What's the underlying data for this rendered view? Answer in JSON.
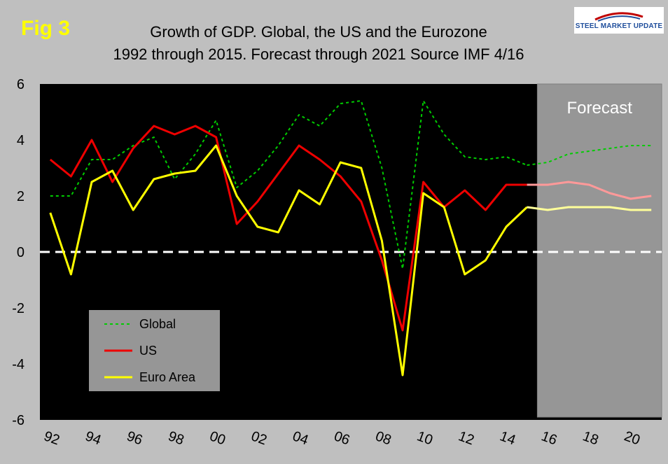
{
  "header": {
    "fig_label": "Fig 3",
    "title_line1": "Growth of GDP. Global, the US and the Eurozone",
    "title_line2": "1992 through 2015. Forecast through 2021 Source IMF 4/16",
    "logo_text": "STEEL MARKET UPDATE"
  },
  "chart_data": {
    "type": "line",
    "title": "Growth of GDP. Global, the US and the Eurozone 1992 through 2015. Forecast through 2021 Source IMF 4/16",
    "xlabel": "",
    "ylabel": "",
    "x": [
      1992,
      1993,
      1994,
      1995,
      1996,
      1997,
      1998,
      1999,
      2000,
      2001,
      2002,
      2003,
      2004,
      2005,
      2006,
      2007,
      2008,
      2009,
      2010,
      2011,
      2012,
      2013,
      2014,
      2015,
      2016,
      2017,
      2018,
      2019,
      2020,
      2021
    ],
    "xlim": [
      1991.5,
      2021.5
    ],
    "ylim": [
      -6,
      6
    ],
    "y_ticks": [
      -6,
      -4,
      -2,
      0,
      2,
      4,
      6
    ],
    "x_tick_values": [
      1992,
      1994,
      1996,
      1998,
      2000,
      2002,
      2004,
      2006,
      2008,
      2010,
      2012,
      2014,
      2016,
      2018,
      2020
    ],
    "x_tick_labels": [
      "92",
      "94",
      "96",
      "98",
      "00",
      "02",
      "04",
      "06",
      "08",
      "10",
      "12",
      "14",
      "16",
      "18",
      "20"
    ],
    "forecast_start": 2015.5,
    "forecast_label": "Forecast",
    "zero_line": true,
    "grid": false,
    "legend_position": "bottom-left",
    "series": [
      {
        "name": "Global",
        "color": "#00cc00",
        "style": "dotted",
        "values": [
          2.0,
          2.0,
          3.3,
          3.3,
          3.8,
          4.1,
          2.6,
          3.5,
          4.7,
          2.3,
          2.9,
          3.8,
          4.9,
          4.5,
          5.3,
          5.4,
          3.0,
          -0.6,
          5.4,
          4.2,
          3.4,
          3.3,
          3.4,
          3.1,
          3.2,
          3.5,
          3.6,
          3.7,
          3.8,
          3.8
        ]
      },
      {
        "name": "US",
        "color": "#ee0000",
        "forecast_color": "#ff9999",
        "style": "solid",
        "values": [
          3.3,
          2.7,
          4.0,
          2.5,
          3.7,
          4.5,
          4.2,
          4.5,
          4.1,
          1.0,
          1.8,
          2.8,
          3.8,
          3.3,
          2.7,
          1.8,
          -0.3,
          -2.8,
          2.5,
          1.6,
          2.2,
          1.5,
          2.4,
          2.4,
          2.4,
          2.5,
          2.4,
          2.1,
          1.9,
          2.0
        ]
      },
      {
        "name": "Euro Area",
        "color": "#ffff00",
        "forecast_color": "#ffff99",
        "style": "solid",
        "values": [
          1.4,
          -0.8,
          2.5,
          2.9,
          1.5,
          2.6,
          2.8,
          2.9,
          3.8,
          2.0,
          0.9,
          0.7,
          2.2,
          1.7,
          3.2,
          3.0,
          0.4,
          -4.4,
          2.1,
          1.6,
          -0.8,
          -0.3,
          0.9,
          1.6,
          1.5,
          1.6,
          1.6,
          1.6,
          1.5,
          1.5
        ]
      }
    ]
  }
}
